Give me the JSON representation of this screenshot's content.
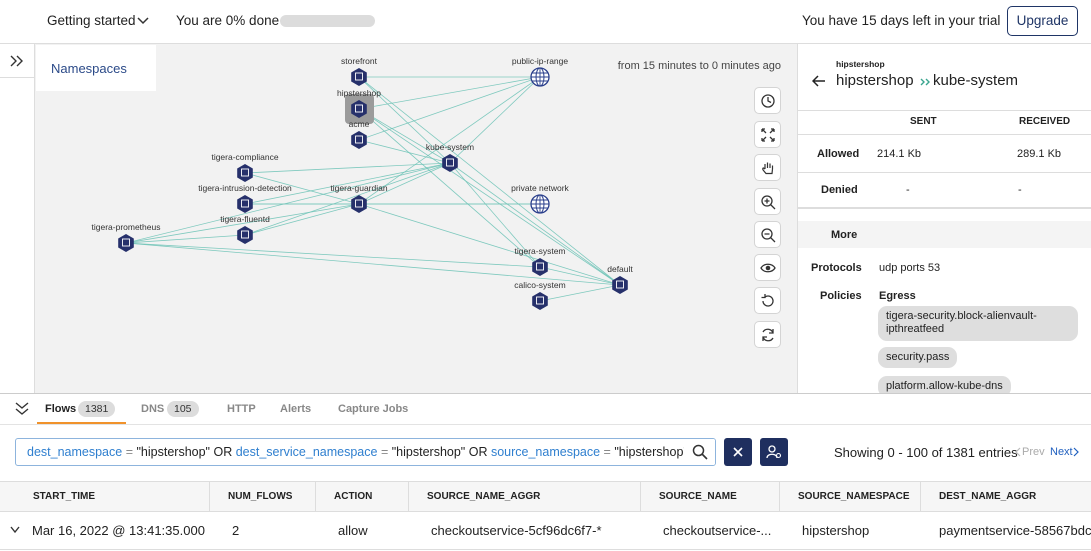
{
  "topbar": {
    "getting_started": "Getting started",
    "progress": "You are 0% done",
    "trial": "You have 15 days left in your trial",
    "upgrade": "Upgrade"
  },
  "graph": {
    "title": "Namespaces",
    "time_range": "from 15 minutes to 0 minutes ago",
    "nodes": [
      "storefront",
      "public-ip-range",
      "hipstershop",
      "acme",
      "kube-system",
      "tigera-compliance",
      "tigera-intrusion-detection",
      "tigera-guardian",
      "private network",
      "tigera-fluentd",
      "tigera-prometheus",
      "tigera-system",
      "default",
      "calico-system"
    ]
  },
  "details": {
    "namespace": "hipstershop",
    "source": "hipstershop",
    "destination": "kube-system",
    "columns": [
      "SENT",
      "RECEIVED"
    ],
    "rows": [
      {
        "label": "Allowed",
        "values": [
          "214.1 Kb",
          "289.1 Kb"
        ]
      },
      {
        "label": "Denied",
        "values": [
          "-",
          "-"
        ]
      }
    ],
    "more": "More",
    "protocols_label": "Protocols",
    "protocols": "udp ports 53",
    "policies_label": "Policies",
    "policy_direction": "Egress",
    "policies": [
      "tigera-security.block-alienvault-ipthreatfeed",
      "security.pass",
      "platform.allow-kube-dns"
    ]
  },
  "tabs": [
    {
      "label": "Flows",
      "count": 1381
    },
    {
      "label": "DNS",
      "count": 105
    },
    {
      "label": "HTTP"
    },
    {
      "label": "Alerts"
    },
    {
      "label": "Capture Jobs"
    }
  ],
  "query": {
    "connector": "OR",
    "clauses": [
      {
        "field": "dest_namespace",
        "op": "=",
        "value": "\"hipstershop\""
      },
      {
        "field": "dest_service_namespace",
        "op": "=",
        "value": "\"hipstershop\""
      },
      {
        "field": "source_namespace",
        "op": "=",
        "value": "\"hipstershop\""
      }
    ]
  },
  "pagination": {
    "showing": "Showing 0 - 100 of 1381 entries",
    "prev": "Prev",
    "next": "Next"
  },
  "table": {
    "columns": [
      "START_TIME",
      "NUM_FLOWS",
      "ACTION",
      "SOURCE_NAME_AGGR",
      "SOURCE_NAME",
      "SOURCE_NAMESPACE",
      "DEST_NAME_AGGR"
    ],
    "rows": [
      [
        "Mar 16, 2022 @ 13:41:35.000",
        2,
        "allow",
        "checkoutservice-5cf96dc6f7-*",
        "checkoutservice-...",
        "hipstershop",
        "paymentservice-58567bdc"
      ]
    ]
  }
}
